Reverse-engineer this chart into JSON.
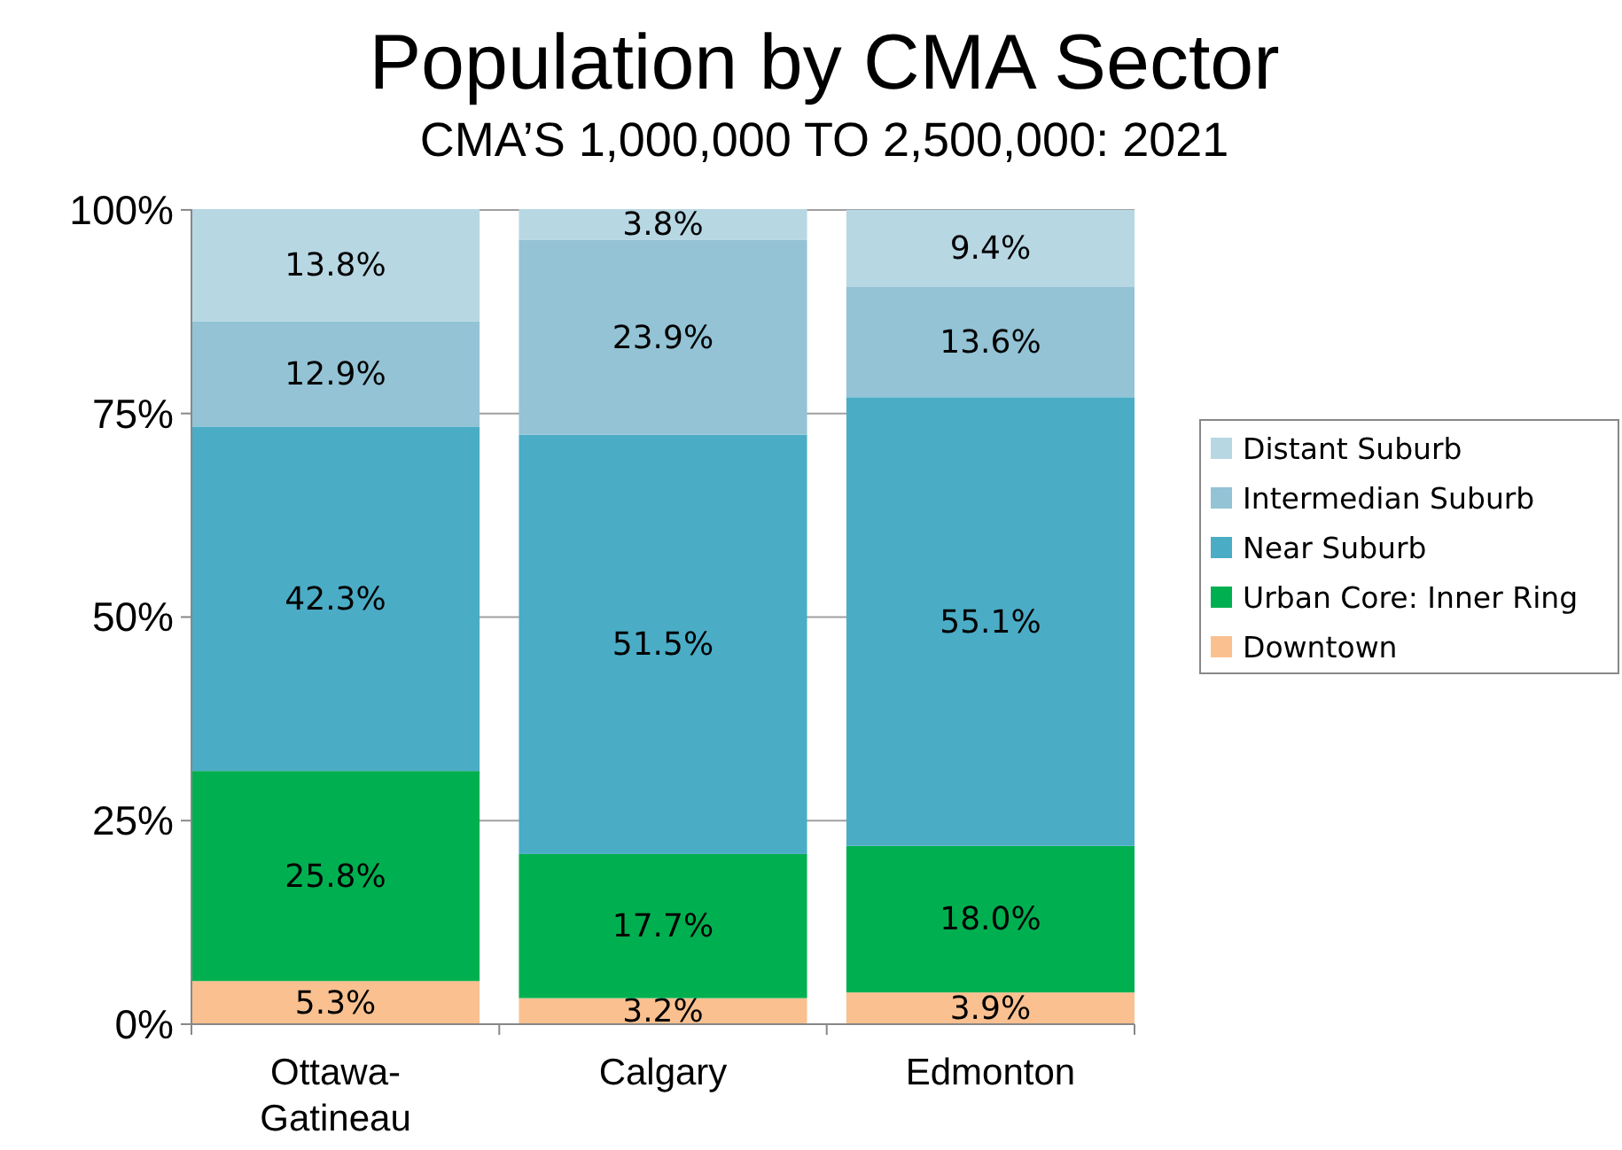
{
  "chart_data": {
    "type": "bar",
    "title": "Population by CMA Sector",
    "subtitle": "CMA’S 1,000,000 TO 2,500,000: 2021",
    "categories": [
      "Ottawa-Gatineau",
      "Calgary",
      "Edmonton"
    ],
    "stacked": true,
    "series": [
      {
        "name": "Downtown",
        "color": "#fac090",
        "values": [
          5.3,
          3.2,
          3.9
        ],
        "value_labels": [
          "5.3%",
          "3.2%",
          "3.9%"
        ]
      },
      {
        "name": "Urban Core: Inner Ring",
        "color": "#00b050",
        "values": [
          25.8,
          17.7,
          18.0
        ],
        "value_labels": [
          "25.8%",
          "17.7%",
          "18.0%"
        ]
      },
      {
        "name": "Near Suburb",
        "color": "#4bacc6",
        "values": [
          42.3,
          51.5,
          55.1
        ],
        "value_labels": [
          "42.3%",
          "51.5%",
          "55.1%"
        ]
      },
      {
        "name": "Intermedian Suburb",
        "color": "#93c3d5",
        "values": [
          12.9,
          23.9,
          13.6
        ],
        "value_labels": [
          "12.9%",
          "23.9%",
          "13.6%"
        ]
      },
      {
        "name": "Distant Suburb",
        "color": "#b7d7e3",
        "values": [
          13.8,
          3.8,
          9.4
        ],
        "value_labels": [
          "13.8%",
          "3.8%",
          "9.4%"
        ]
      }
    ],
    "ylim": [
      0,
      100.1
    ],
    "yticks": [
      {
        "value": 0,
        "label": "0%"
      },
      {
        "value": 25,
        "label": "25%"
      },
      {
        "value": 50,
        "label": "50%"
      },
      {
        "value": 75,
        "label": "75%"
      },
      {
        "value": 100,
        "label": "100%"
      }
    ],
    "grid": "y",
    "legend": "right"
  }
}
